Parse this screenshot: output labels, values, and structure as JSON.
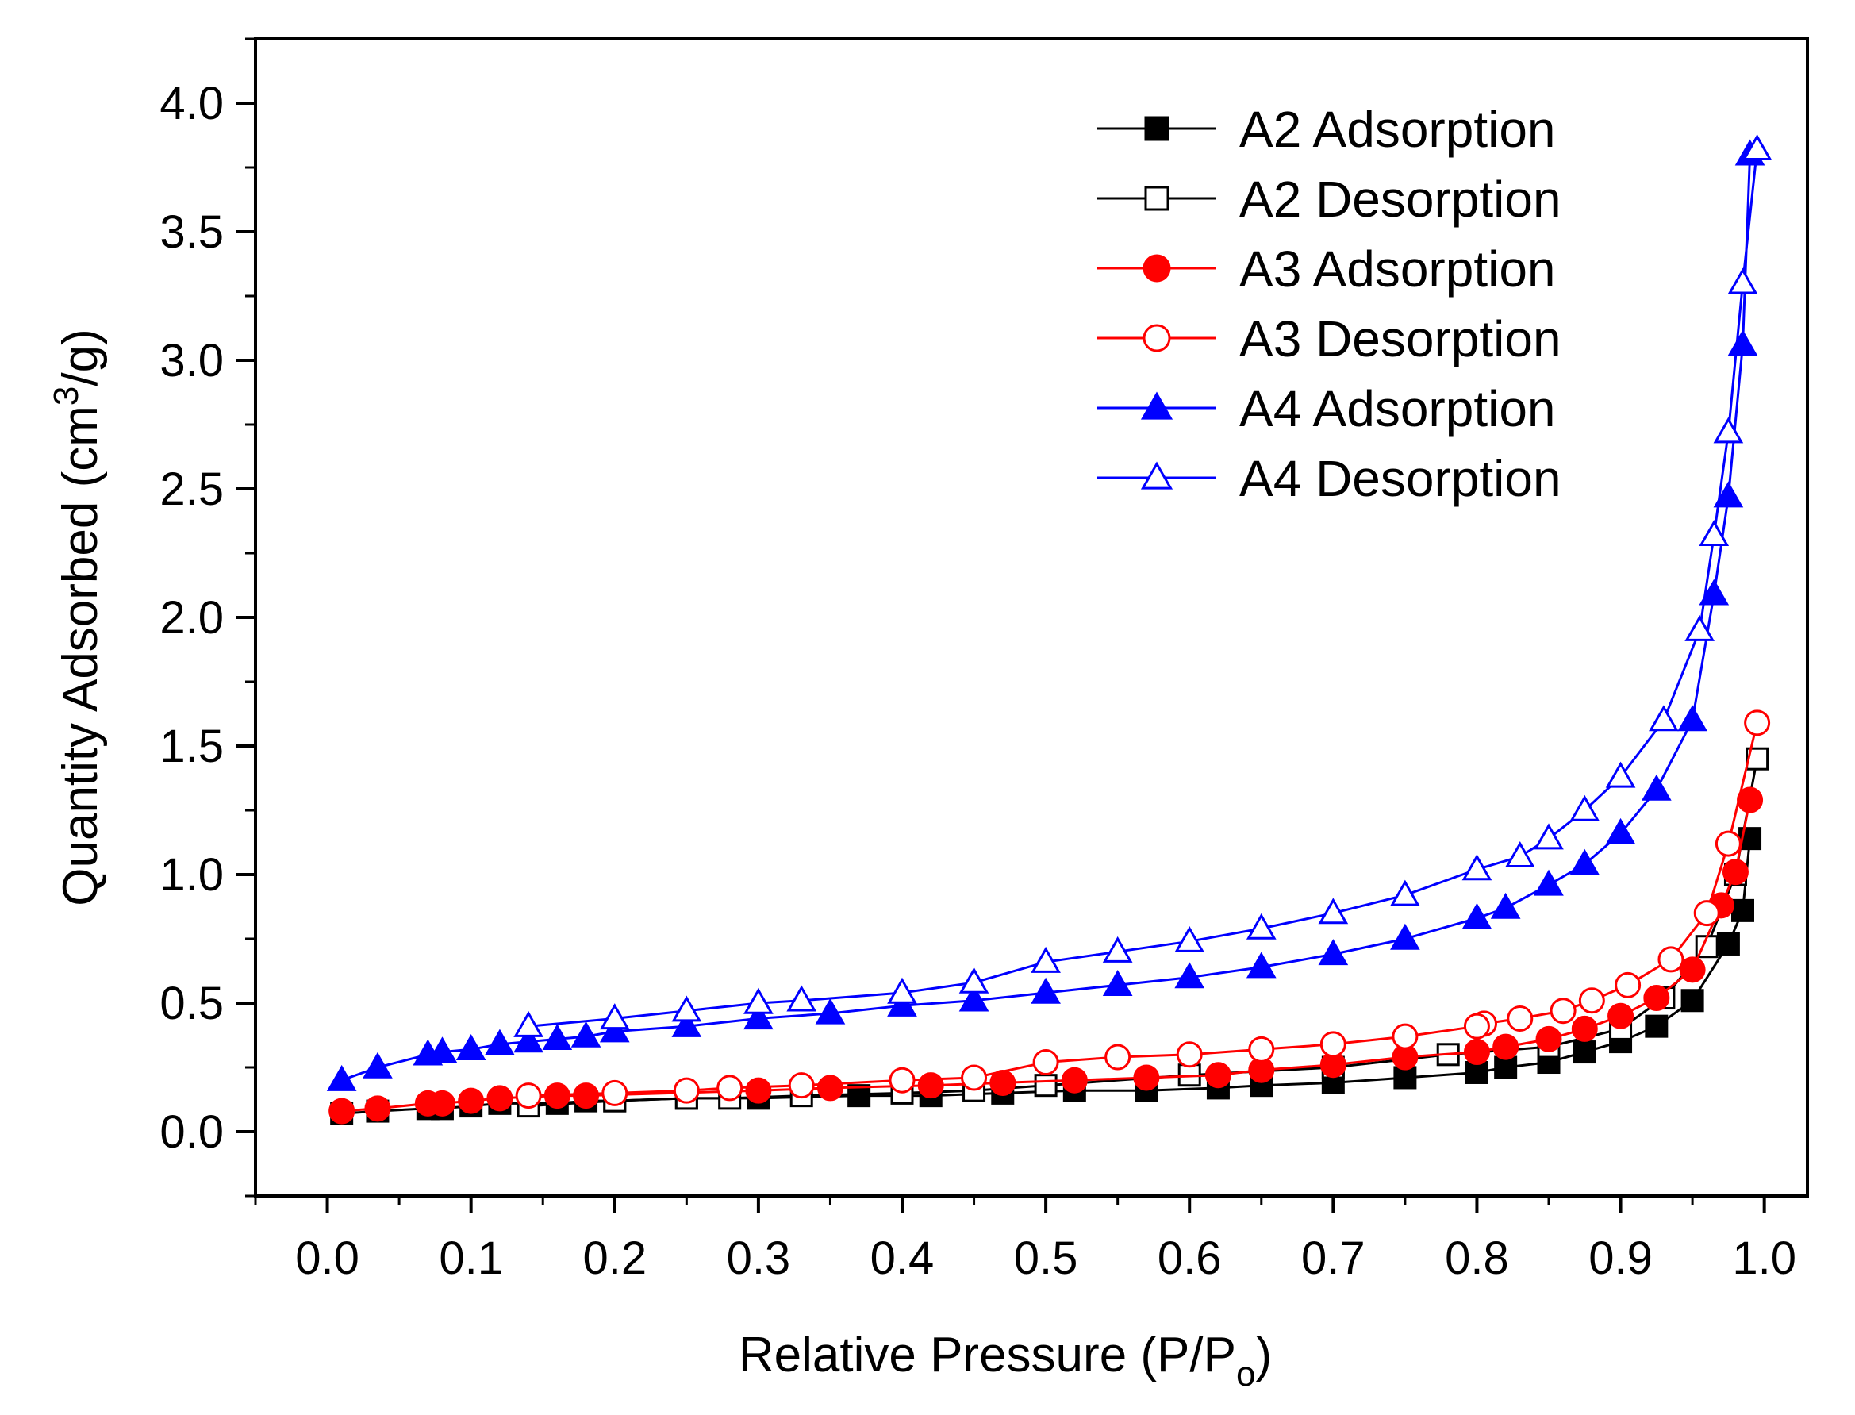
{
  "chart_data": {
    "type": "line",
    "xlabel": "Relative Pressure (P/Po)",
    "ylabel": "Quantity Adsorbed (cm³/g)",
    "xlim": [
      -0.05,
      1.03
    ],
    "ylim": [
      -0.25,
      4.25
    ],
    "xticks": [
      "0.0",
      "0.1",
      "0.2",
      "0.3",
      "0.4",
      "0.5",
      "0.6",
      "0.7",
      "0.8",
      "0.9",
      "1.0"
    ],
    "yticks": [
      "0.0",
      "0.5",
      "1.0",
      "1.5",
      "2.0",
      "2.5",
      "3.0",
      "3.5",
      "4.0"
    ],
    "legend_position": "top-right",
    "grid": false,
    "series": [
      {
        "name": "A2 Adsorption",
        "color": "#000000",
        "marker": "square",
        "filled": true,
        "x": [
          0.01,
          0.035,
          0.07,
          0.08,
          0.1,
          0.12,
          0.14,
          0.16,
          0.18,
          0.2,
          0.25,
          0.3,
          0.37,
          0.42,
          0.47,
          0.52,
          0.57,
          0.62,
          0.65,
          0.7,
          0.75,
          0.8,
          0.82,
          0.85,
          0.875,
          0.9,
          0.925,
          0.95,
          0.975,
          0.985,
          0.99
        ],
        "y": [
          0.07,
          0.08,
          0.09,
          0.09,
          0.1,
          0.11,
          0.11,
          0.11,
          0.12,
          0.12,
          0.13,
          0.13,
          0.14,
          0.14,
          0.15,
          0.16,
          0.16,
          0.17,
          0.18,
          0.19,
          0.21,
          0.23,
          0.25,
          0.27,
          0.31,
          0.35,
          0.41,
          0.51,
          0.73,
          0.86,
          1.14
        ]
      },
      {
        "name": "A2 Desorption",
        "color": "#000000",
        "marker": "square",
        "filled": false,
        "x": [
          0.995,
          0.98,
          0.96,
          0.93,
          0.9,
          0.85,
          0.78,
          0.7,
          0.6,
          0.5,
          0.45,
          0.4,
          0.33,
          0.28,
          0.25,
          0.2,
          0.14
        ],
        "y": [
          1.45,
          1.0,
          0.72,
          0.52,
          0.4,
          0.33,
          0.3,
          0.25,
          0.22,
          0.18,
          0.16,
          0.15,
          0.14,
          0.13,
          0.13,
          0.12,
          0.1
        ]
      },
      {
        "name": "A3 Adsorption",
        "color": "#ff0000",
        "marker": "circle",
        "filled": true,
        "x": [
          0.01,
          0.035,
          0.07,
          0.08,
          0.1,
          0.12,
          0.16,
          0.18,
          0.3,
          0.35,
          0.42,
          0.47,
          0.52,
          0.57,
          0.62,
          0.65,
          0.7,
          0.75,
          0.8,
          0.82,
          0.85,
          0.875,
          0.9,
          0.925,
          0.95,
          0.97,
          0.98,
          0.99
        ],
        "y": [
          0.08,
          0.09,
          0.11,
          0.11,
          0.12,
          0.13,
          0.14,
          0.14,
          0.16,
          0.17,
          0.18,
          0.19,
          0.2,
          0.21,
          0.22,
          0.24,
          0.26,
          0.29,
          0.31,
          0.33,
          0.36,
          0.4,
          0.45,
          0.52,
          0.63,
          0.88,
          1.01,
          1.29
        ]
      },
      {
        "name": "A3 Desorption",
        "color": "#ff0000",
        "marker": "circle",
        "filled": false,
        "x": [
          0.995,
          0.975,
          0.96,
          0.935,
          0.905,
          0.88,
          0.86,
          0.83,
          0.805,
          0.8,
          0.75,
          0.7,
          0.65,
          0.6,
          0.55,
          0.5,
          0.45,
          0.4,
          0.33,
          0.28,
          0.25,
          0.2,
          0.14
        ],
        "y": [
          1.59,
          1.12,
          0.85,
          0.67,
          0.57,
          0.51,
          0.47,
          0.44,
          0.42,
          0.41,
          0.37,
          0.34,
          0.32,
          0.3,
          0.29,
          0.27,
          0.21,
          0.2,
          0.18,
          0.17,
          0.16,
          0.15,
          0.14
        ]
      },
      {
        "name": "A4 Adsorption",
        "color": "#0000ff",
        "marker": "triangle",
        "filled": true,
        "x": [
          0.01,
          0.035,
          0.07,
          0.08,
          0.1,
          0.12,
          0.14,
          0.16,
          0.18,
          0.2,
          0.25,
          0.3,
          0.35,
          0.4,
          0.45,
          0.5,
          0.55,
          0.6,
          0.65,
          0.7,
          0.75,
          0.8,
          0.82,
          0.85,
          0.875,
          0.9,
          0.925,
          0.95,
          0.965,
          0.975,
          0.985,
          0.99
        ],
        "y": [
          0.2,
          0.25,
          0.3,
          0.31,
          0.32,
          0.34,
          0.35,
          0.36,
          0.37,
          0.39,
          0.41,
          0.44,
          0.46,
          0.49,
          0.51,
          0.54,
          0.57,
          0.6,
          0.64,
          0.69,
          0.75,
          0.83,
          0.87,
          0.96,
          1.04,
          1.16,
          1.33,
          1.6,
          2.09,
          2.47,
          3.06,
          3.8
        ]
      },
      {
        "name": "A4 Desorption",
        "color": "#0000ff",
        "marker": "triangle",
        "filled": false,
        "x": [
          0.995,
          0.985,
          0.975,
          0.965,
          0.955,
          0.93,
          0.9,
          0.875,
          0.85,
          0.83,
          0.8,
          0.75,
          0.7,
          0.65,
          0.6,
          0.55,
          0.5,
          0.45,
          0.4,
          0.33,
          0.3,
          0.25,
          0.2,
          0.14
        ],
        "y": [
          3.82,
          3.3,
          2.72,
          2.32,
          1.95,
          1.6,
          1.38,
          1.25,
          1.14,
          1.07,
          1.02,
          0.92,
          0.85,
          0.79,
          0.74,
          0.7,
          0.66,
          0.58,
          0.54,
          0.51,
          0.5,
          0.47,
          0.44,
          0.41
        ]
      }
    ]
  }
}
